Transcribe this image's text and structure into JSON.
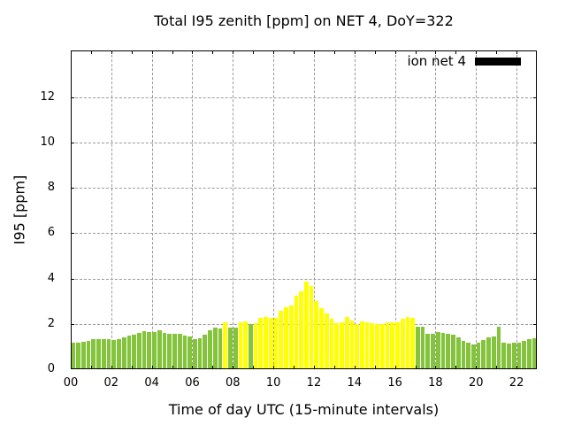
{
  "title": "Total I95 zenith [ppm] on NET 4, DoY=322",
  "legend": {
    "label": "ion net 4",
    "swatch_color": "#000000"
  },
  "axes": {
    "xlabel": "Time of day UTC (15-minute intervals)",
    "ylabel": "I95 [ppm]",
    "x_tick_labels": [
      "00",
      "02",
      "04",
      "06",
      "08",
      "10",
      "12",
      "14",
      "16",
      "18",
      "20",
      "22"
    ],
    "y_tick_values": [
      0,
      2,
      4,
      6,
      8,
      10,
      12
    ]
  },
  "colors": {
    "bar_green": "#84c43c",
    "bar_yellow": "#ffff00",
    "grid": "#9a9a9a",
    "frame": "#000000",
    "background": "#ffffff",
    "text": "#000000",
    "legend_swatch": "#000000"
  },
  "chart_data": {
    "type": "bar",
    "title": "Total I95 zenith [ppm] on NET 4, DoY=322",
    "xlabel": "Time of day UTC (15-minute intervals)",
    "ylabel": "I95 [ppm]",
    "legend": [
      {
        "name": "ion net 4",
        "swatch": "#000000"
      }
    ],
    "legend_position": "top-right",
    "grid": true,
    "interval_minutes": 15,
    "xlim_hours": [
      0,
      23
    ],
    "ylim": [
      0,
      14.07
    ],
    "x": [
      "00:00",
      "00:15",
      "00:30",
      "00:45",
      "01:00",
      "01:15",
      "01:30",
      "01:45",
      "02:00",
      "02:15",
      "02:30",
      "02:45",
      "03:00",
      "03:15",
      "03:30",
      "03:45",
      "04:00",
      "04:15",
      "04:30",
      "04:45",
      "05:00",
      "05:15",
      "05:30",
      "05:45",
      "06:00",
      "06:15",
      "06:30",
      "06:45",
      "07:00",
      "07:15",
      "07:30",
      "07:45",
      "08:00",
      "08:15",
      "08:30",
      "08:45",
      "09:00",
      "09:15",
      "09:30",
      "09:45",
      "10:00",
      "10:15",
      "10:30",
      "10:45",
      "11:00",
      "11:15",
      "11:30",
      "11:45",
      "12:00",
      "12:15",
      "12:30",
      "12:45",
      "13:00",
      "13:15",
      "13:30",
      "13:45",
      "14:00",
      "14:15",
      "14:30",
      "14:45",
      "15:00",
      "15:15",
      "15:30",
      "15:45",
      "16:00",
      "16:15",
      "16:30",
      "16:45",
      "17:00",
      "17:15",
      "17:30",
      "17:45",
      "18:00",
      "18:15",
      "18:30",
      "18:45",
      "19:00",
      "19:15",
      "19:30",
      "19:45",
      "20:00",
      "20:15",
      "20:30",
      "20:45",
      "21:00",
      "21:15",
      "21:30",
      "21:45",
      "22:00",
      "22:15",
      "22:30",
      "22:45"
    ],
    "values": [
      1.17,
      1.17,
      1.2,
      1.27,
      1.33,
      1.33,
      1.31,
      1.33,
      1.29,
      1.33,
      1.4,
      1.47,
      1.53,
      1.6,
      1.67,
      1.63,
      1.65,
      1.72,
      1.61,
      1.55,
      1.55,
      1.55,
      1.48,
      1.45,
      1.34,
      1.38,
      1.51,
      1.73,
      1.83,
      1.81,
      2.09,
      1.83,
      1.84,
      2.07,
      2.1,
      2.0,
      2.05,
      2.25,
      2.3,
      2.25,
      2.25,
      2.57,
      2.74,
      2.83,
      3.26,
      3.43,
      3.87,
      3.69,
      3.0,
      2.68,
      2.48,
      2.22,
      2.05,
      2.06,
      2.29,
      2.16,
      1.99,
      2.12,
      2.06,
      2.03,
      1.99,
      1.99,
      2.06,
      2.09,
      2.06,
      2.22,
      2.32,
      2.25,
      1.86,
      1.86,
      1.55,
      1.57,
      1.64,
      1.6,
      1.57,
      1.51,
      1.42,
      1.25,
      1.16,
      1.08,
      1.19,
      1.3,
      1.39,
      1.45,
      1.87,
      1.17,
      1.13,
      1.17,
      1.19,
      1.26,
      1.32,
      1.35
    ],
    "bar_color_key": [
      "g",
      "g",
      "g",
      "g",
      "g",
      "g",
      "g",
      "g",
      "g",
      "g",
      "g",
      "g",
      "g",
      "g",
      "g",
      "g",
      "g",
      "g",
      "g",
      "g",
      "g",
      "g",
      "g",
      "g",
      "g",
      "g",
      "g",
      "g",
      "g",
      "g",
      "y",
      "g",
      "g",
      "y",
      "y",
      "g",
      "y",
      "y",
      "y",
      "y",
      "y",
      "y",
      "y",
      "y",
      "y",
      "y",
      "y",
      "y",
      "y",
      "y",
      "y",
      "y",
      "y",
      "y",
      "y",
      "y",
      "y",
      "y",
      "y",
      "y",
      "y",
      "y",
      "y",
      "y",
      "y",
      "y",
      "y",
      "y",
      "g",
      "g",
      "g",
      "g",
      "g",
      "g",
      "g",
      "g",
      "g",
      "g",
      "g",
      "g",
      "g",
      "g",
      "g",
      "g",
      "g",
      "g",
      "g",
      "g",
      "g",
      "g",
      "g",
      "g"
    ],
    "color_map": {
      "g": "#84c43c",
      "y": "#ffff00"
    }
  }
}
